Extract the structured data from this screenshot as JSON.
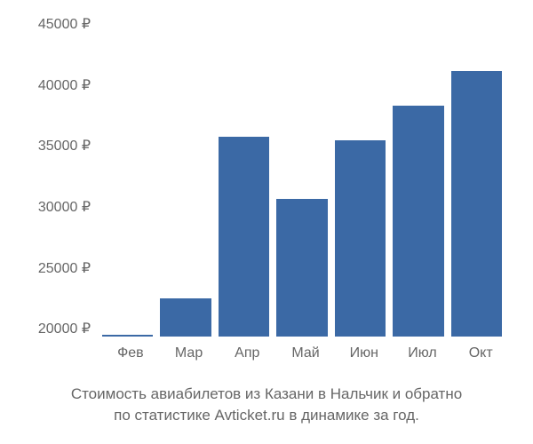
{
  "chart": {
    "type": "bar",
    "categories": [
      "Фев",
      "Мар",
      "Апр",
      "Май",
      "Июн",
      "Июл",
      "Окт"
    ],
    "values": [
      20200,
      23000,
      35700,
      30800,
      35400,
      38100,
      40800
    ],
    "bar_color": "#3b69a5",
    "ylim": [
      20000,
      45000
    ],
    "ytick_step": 5000,
    "yticks": [
      "45000 ₽",
      "40000 ₽",
      "35000 ₽",
      "30000 ₽",
      "25000 ₽",
      "20000 ₽"
    ],
    "background_color": "#ffffff",
    "tick_color": "#666666",
    "tick_fontsize": 16,
    "caption_fontsize": 17,
    "caption_color": "#666666",
    "caption_line1": "Стоимость авиабилетов из Казани в Нальчик и обратно",
    "caption_line2": "по статистике Avticket.ru в динамике за год."
  }
}
